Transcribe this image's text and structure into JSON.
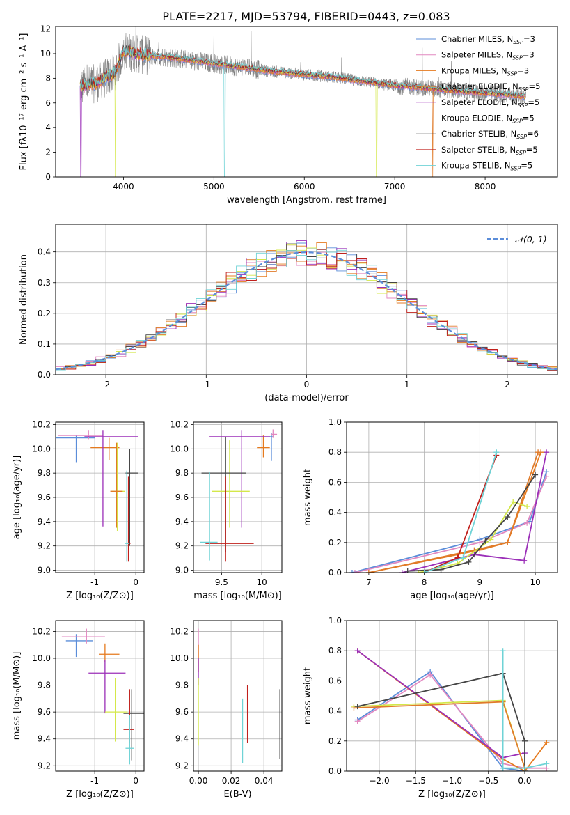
{
  "figure_title": "PLATE=2217, MJD=53794, FIBERID=0443, z=0.083",
  "colors": {
    "Chabrier MILES": "#5b8dd9",
    "Salpeter MILES": "#e288c0",
    "Kroupa MILES": "#e57a1e",
    "Chabrier ELODIE": "#e07b2a",
    "Salpeter ELODIE": "#9b2fb8",
    "Kroupa ELODIE": "#d4e84a",
    "Chabrier STELIB": "#444444",
    "Salpeter STELIB": "#c0201c",
    "Kroupa STELIB": "#6fd3d6",
    "data": "#808080",
    "grid": "#b0b0b0"
  },
  "chart_data": [
    {
      "id": "spectrum",
      "type": "line",
      "xlabel": "wavelength [Angstrom, rest frame]",
      "ylabel": "Flux [fλ10⁻¹⁷ erg cm⁻² s⁻¹ A⁻¹]",
      "xlim": [
        3250,
        8800
      ],
      "ylim": [
        0,
        12.2
      ],
      "xticks": [
        4000,
        5000,
        6000,
        7000,
        8000
      ],
      "yticks": [
        0,
        2,
        4,
        6,
        8,
        10,
        12
      ],
      "grid": false,
      "legend": "top-right",
      "legend_entries": [
        {
          "model": "Chabrier MILES",
          "label": "Chabrier MILES, N",
          "sub": "SSP",
          "suffix": "=3"
        },
        {
          "model": "Salpeter MILES",
          "label": "Salpeter MILES, N",
          "sub": "SSP",
          "suffix": "=3"
        },
        {
          "model": "Kroupa MILES",
          "label": "Kroupa MILES, N",
          "sub": "SSP",
          "suffix": "=3"
        },
        {
          "model": "Chabrier ELODIE",
          "label": "Chabrier ELODIE, N",
          "sub": "SSP",
          "suffix": "=5"
        },
        {
          "model": "Salpeter ELODIE",
          "label": "Salpeter ELODIE, N",
          "sub": "SSP",
          "suffix": "=5"
        },
        {
          "model": "Kroupa ELODIE",
          "label": "Kroupa ELODIE, N",
          "sub": "SSP",
          "suffix": "=5"
        },
        {
          "model": "Chabrier STELIB",
          "label": "Chabrier STELIB, N",
          "sub": "SSP",
          "suffix": "=6"
        },
        {
          "model": "Salpeter STELIB",
          "label": "Salpeter STELIB, N",
          "sub": "SSP",
          "suffix": "=5"
        },
        {
          "model": "Kroupa STELIB",
          "label": "Kroupa STELIB, N",
          "sub": "SSP",
          "suffix": "=5"
        }
      ],
      "continuum": {
        "wavelength": [
          3520,
          3700,
          3900,
          4000,
          4200,
          4500,
          4800,
          5000,
          5300,
          5600,
          6000,
          6300,
          6600,
          6800,
          7000,
          7200,
          7500,
          7800,
          8000,
          8200,
          8450
        ],
        "flux": [
          7.3,
          7.6,
          8.4,
          10.2,
          9.9,
          9.7,
          9.4,
          9.2,
          8.9,
          8.6,
          8.3,
          8.1,
          7.8,
          7.6,
          7.4,
          7.3,
          7.1,
          6.9,
          6.8,
          6.7,
          6.5
        ]
      },
      "model_dropouts": [
        {
          "model": "Kroupa ELODIE",
          "wavelength": 3910
        },
        {
          "model": "Kroupa STELIB",
          "wavelength": 5120
        },
        {
          "model": "Kroupa ELODIE",
          "wavelength": 6800
        },
        {
          "model": "Chabrier ELODIE",
          "wavelength": 7420
        },
        {
          "model": "Salpeter ELODIE",
          "wavelength": 3530
        }
      ]
    },
    {
      "id": "residuals",
      "type": "step",
      "xlabel": "(data-model)/error",
      "ylabel": "Normed distribution",
      "xlim": [
        -2.5,
        2.5
      ],
      "ylim": [
        0,
        0.49
      ],
      "xticks": [
        -2,
        -1,
        0,
        1,
        2
      ],
      "yticks": [
        0.0,
        0.1,
        0.2,
        0.3,
        0.4
      ],
      "grid": true,
      "legend": "top-right",
      "legend_label": "𝒩(0, 1)",
      "bin_width": 0.1
    },
    {
      "id": "age-vs-Z",
      "type": "errorbar",
      "xlabel": "Z [log₁₀(Z/Z⊙)]",
      "ylabel": "age  [log₁₀(age/yr)]",
      "xlim": [
        -1.95,
        0.2
      ],
      "ylim": [
        8.98,
        10.22
      ],
      "xticks": [
        -1,
        0
      ],
      "yticks": [
        9.0,
        9.2,
        9.4,
        9.6,
        9.8,
        10.0,
        10.2
      ],
      "grid": true,
      "points": [
        {
          "model": "Chabrier MILES",
          "x": -1.45,
          "xerr": [
            0.5,
            0.45
          ],
          "y": 10.09,
          "yerr": [
            0.2,
            0.02
          ]
        },
        {
          "model": "Salpeter MILES",
          "x": -1.15,
          "xerr": [
            0.75,
            0.35
          ],
          "y": 10.11,
          "yerr": [
            0.03,
            0.04
          ]
        },
        {
          "model": "Kroupa MILES",
          "x": -0.65,
          "xerr": [
            0.45,
            0.25
          ],
          "y": 10.01,
          "yerr": [
            0.1,
            0.08
          ]
        },
        {
          "model": "Salpeter ELODIE",
          "x": -0.8,
          "xerr": [
            0.45,
            0.85
          ],
          "y": 10.1,
          "yerr": [
            0.74,
            0.05
          ]
        },
        {
          "model": "Kroupa ELODIE",
          "x": -0.45,
          "xerr": [
            0.15,
            0.18
          ],
          "y": 9.65,
          "yerr": [
            0.33,
            0.4
          ]
        },
        {
          "model": "Chabrier ELODIE",
          "x": -0.47,
          "xerr": [
            0.15,
            0.15
          ],
          "y": 9.65,
          "yerr": [
            0.3,
            0.4
          ]
        },
        {
          "model": "Chabrier STELIB",
          "x": -0.15,
          "xerr": [
            0.1,
            0.2
          ],
          "y": 9.8,
          "yerr": [
            0.6,
            0.2
          ]
        },
        {
          "model": "Salpeter STELIB",
          "x": -0.18,
          "xerr": [
            0.05,
            0.05
          ],
          "y": 9.22,
          "yerr": [
            0.15,
            0.55
          ]
        },
        {
          "model": "Kroupa STELIB",
          "x": -0.22,
          "xerr": [
            0.05,
            0.05
          ],
          "y": 9.22,
          "yerr": [
            0.15,
            0.6
          ]
        }
      ]
    },
    {
      "id": "age-vs-mass",
      "type": "errorbar",
      "xlabel": "mass [log₁₀(M/M⊙)]",
      "ylabel": "",
      "xlim": [
        9.15,
        10.25
      ],
      "ylim": [
        8.98,
        10.22
      ],
      "xticks": [
        9.5,
        10.0
      ],
      "yticks": [
        9.0,
        9.2,
        9.4,
        9.6,
        9.8,
        10.0,
        10.2
      ],
      "grid": true,
      "points": [
        {
          "model": "Chabrier MILES",
          "x": 10.12,
          "xerr": [
            0.03,
            0.03
          ],
          "y": 10.1,
          "yerr": [
            0.2,
            0.03
          ]
        },
        {
          "model": "Salpeter MILES",
          "x": 10.14,
          "xerr": [
            0.02,
            0.05
          ],
          "y": 10.12,
          "yerr": [
            0.03,
            0.04
          ]
        },
        {
          "model": "Kroupa MILES",
          "x": 10.02,
          "xerr": [
            0.08,
            0.08
          ],
          "y": 10.01,
          "yerr": [
            0.08,
            0.1
          ]
        },
        {
          "model": "Salpeter ELODIE",
          "x": 9.75,
          "xerr": [
            0.4,
            0.35
          ],
          "y": 10.1,
          "yerr": [
            0.75,
            0.05
          ]
        },
        {
          "model": "Kroupa ELODIE",
          "x": 9.6,
          "xerr": [
            0.22,
            0.25
          ],
          "y": 9.65,
          "yerr": [
            0.3,
            0.42
          ]
        },
        {
          "model": "Chabrier STELIB",
          "x": 9.55,
          "xerr": [
            0.3,
            0.25
          ],
          "y": 9.8,
          "yerr": [
            0.65,
            0.3
          ]
        },
        {
          "model": "Salpeter STELIB",
          "x": 9.55,
          "xerr": [
            0.25,
            0.35
          ],
          "y": 9.22,
          "yerr": [
            0.15,
            0.55
          ]
        },
        {
          "model": "Kroupa STELIB",
          "x": 9.35,
          "xerr": [
            0.12,
            0.1
          ],
          "y": 9.23,
          "yerr": [
            0.15,
            0.58
          ]
        }
      ]
    },
    {
      "id": "massweight-vs-age",
      "type": "line",
      "xlabel": "age  [log₁₀(age/yr)]",
      "ylabel": "mass weight",
      "xlim": [
        6.6,
        10.4
      ],
      "ylim": [
        0,
        1.0
      ],
      "xticks": [
        7,
        8,
        9,
        10
      ],
      "yticks": [
        0.0,
        0.2,
        0.4,
        0.6,
        0.8,
        1.0
      ],
      "grid": true,
      "series": [
        {
          "model": "Chabrier MILES",
          "x": [
            6.7,
            9.0,
            9.9,
            10.2
          ],
          "y": [
            0.0,
            0.22,
            0.34,
            0.67
          ]
        },
        {
          "model": "Salpeter MILES",
          "x": [
            6.75,
            9.0,
            9.85,
            10.2
          ],
          "y": [
            0.0,
            0.2,
            0.33,
            0.64
          ]
        },
        {
          "model": "Kroupa MILES",
          "x": [
            7.0,
            9.0,
            9.5,
            10.1
          ],
          "y": [
            0.0,
            0.15,
            0.2,
            0.8
          ]
        },
        {
          "model": "Chabrier ELODIE",
          "x": [
            7.0,
            8.9,
            9.5,
            10.05
          ],
          "y": [
            0.0,
            0.15,
            0.2,
            0.8
          ]
        },
        {
          "model": "Salpeter ELODIE",
          "x": [
            7.6,
            8.9,
            9.8,
            10.2
          ],
          "y": [
            0.0,
            0.12,
            0.08,
            0.8
          ]
        },
        {
          "model": "Kroupa ELODIE",
          "x": [
            7.9,
            8.6,
            9.2,
            9.6,
            9.85
          ],
          "y": [
            0.0,
            0.06,
            0.22,
            0.47,
            0.44
          ]
        },
        {
          "model": "Chabrier STELIB",
          "x": [
            7.7,
            8.3,
            8.8,
            9.1,
            9.5,
            10.0
          ],
          "y": [
            0.01,
            0.02,
            0.07,
            0.21,
            0.37,
            0.65
          ]
        },
        {
          "model": "Salpeter STELIB",
          "x": [
            8.0,
            8.6,
            9.3
          ],
          "y": [
            0.0,
            0.1,
            0.78
          ]
        },
        {
          "model": "Kroupa STELIB",
          "x": [
            8.0,
            8.7,
            9.3
          ],
          "y": [
            0.0,
            0.1,
            0.8
          ]
        }
      ]
    },
    {
      "id": "mass-vs-Z",
      "type": "errorbar",
      "xlabel": "Z [log₁₀(Z/Z⊙)]",
      "ylabel": "mass [log₁₀(M/M⊙)]",
      "xlim": [
        -1.95,
        0.2
      ],
      "ylim": [
        9.16,
        10.28
      ],
      "xticks": [
        -1,
        0
      ],
      "yticks": [
        9.2,
        9.4,
        9.6,
        9.8,
        10.0,
        10.2
      ],
      "grid": true,
      "points": [
        {
          "model": "Chabrier MILES",
          "x": -1.45,
          "xerr": [
            0.25,
            0.4
          ],
          "y": 10.13,
          "yerr": [
            0.12,
            0.05
          ]
        },
        {
          "model": "Salpeter MILES",
          "x": -1.2,
          "xerr": [
            0.6,
            0.45
          ],
          "y": 10.16,
          "yerr": [
            0.05,
            0.06
          ]
        },
        {
          "model": "Kroupa MILES",
          "x": -0.75,
          "xerr": [
            0.15,
            0.35
          ],
          "y": 10.03,
          "yerr": [
            0.06,
            0.08
          ]
        },
        {
          "model": "Salpeter ELODIE",
          "x": -0.75,
          "xerr": [
            0.4,
            0.5
          ],
          "y": 9.89,
          "yerr": [
            0.3,
            0.1
          ]
        },
        {
          "model": "Kroupa ELODIE",
          "x": -0.5,
          "xerr": [
            0.25,
            0.3
          ],
          "y": 9.6,
          "yerr": [
            0.22,
            0.25
          ]
        },
        {
          "model": "Chabrier STELIB",
          "x": -0.1,
          "xerr": [
            0.2,
            0.3
          ],
          "y": 9.59,
          "yerr": [
            0.35,
            0.18
          ]
        },
        {
          "model": "Salpeter STELIB",
          "x": -0.15,
          "xerr": [
            0.15,
            0.1
          ],
          "y": 9.47,
          "yerr": [
            0.1,
            0.3
          ]
        },
        {
          "model": "Kroupa STELIB",
          "x": -0.15,
          "xerr": [
            0.1,
            0.1
          ],
          "y": 9.33,
          "yerr": [
            0.12,
            0.25
          ]
        }
      ]
    },
    {
      "id": "mass-vs-EBV",
      "type": "errorbar",
      "xlabel": "E(B-V)",
      "ylabel": "",
      "xlim": [
        -0.003,
        0.051
      ],
      "ylim": [
        9.16,
        10.28
      ],
      "xticks": [
        0.0,
        0.02,
        0.04
      ],
      "xtick_labels": [
        "0.00",
        "0.02",
        "0.04"
      ],
      "yticks": [
        9.2,
        9.4,
        9.6,
        9.8,
        10.0,
        10.2
      ],
      "grid": true,
      "points": [
        {
          "model": "Salpeter MILES",
          "x": 0.0,
          "y": 10.1,
          "yerr": [
            0.1,
            0.12
          ]
        },
        {
          "model": "Kroupa MILES",
          "x": 0.0,
          "y": 10.0,
          "yerr": [
            0.1,
            0.1
          ]
        },
        {
          "model": "Salpeter ELODIE",
          "x": 0.0,
          "y": 9.9,
          "yerr": [
            0.1,
            0.1
          ]
        },
        {
          "model": "Kroupa ELODIE",
          "x": 0.0,
          "y": 9.6,
          "yerr": [
            0.25,
            0.25
          ]
        },
        {
          "model": "Kroupa STELIB",
          "x": 0.027,
          "y": 9.45,
          "yerr": [
            0.23,
            0.25
          ]
        },
        {
          "model": "Salpeter STELIB",
          "x": 0.03,
          "y": 9.57,
          "yerr": [
            0.2,
            0.23
          ]
        },
        {
          "model": "Chabrier STELIB",
          "x": 0.0498,
          "y": 9.5,
          "yerr": [
            0.25,
            0.27
          ]
        }
      ]
    },
    {
      "id": "massweight-vs-Z",
      "type": "line",
      "xlabel": "Z [log₁₀(Z/Z⊙)]",
      "ylabel": "mass weight",
      "xlim": [
        -2.45,
        0.45
      ],
      "ylim": [
        0,
        1.0
      ],
      "xticks": [
        -2.0,
        -1.5,
        -1.0,
        -0.5,
        0.0
      ],
      "xtick_labels": [
        "−2.0",
        "−1.5",
        "−1.0",
        "−0.5",
        "0.0"
      ],
      "yticks": [
        0.0,
        0.2,
        0.4,
        0.6,
        0.8,
        1.0
      ],
      "grid": true,
      "series": [
        {
          "model": "Chabrier MILES",
          "x": [
            -2.3,
            -1.3,
            -0.3,
            0.0
          ],
          "y": [
            0.34,
            0.66,
            0.02,
            0.0
          ]
        },
        {
          "model": "Salpeter MILES",
          "x": [
            -2.3,
            -1.3,
            -0.3,
            0.0,
            0.3
          ],
          "y": [
            0.33,
            0.64,
            0.05,
            0.02,
            0.02
          ]
        },
        {
          "model": "Kroupa MILES",
          "x": [
            -2.3,
            -0.3,
            0.0,
            0.3
          ],
          "y": [
            0.8,
            0.08,
            0.0,
            0.19
          ]
        },
        {
          "model": "Salpeter ELODIE",
          "x": [
            -2.3,
            -0.3,
            0.0
          ],
          "y": [
            0.8,
            0.09,
            0.12
          ]
        },
        {
          "model": "Kroupa ELODIE",
          "x": [
            -2.35,
            -0.3,
            0.0
          ],
          "y": [
            0.43,
            0.47,
            0.02
          ]
        },
        {
          "model": "Chabrier ELODIE",
          "x": [
            -2.35,
            -0.3,
            0.0
          ],
          "y": [
            0.42,
            0.46,
            0.02
          ]
        },
        {
          "model": "Chabrier STELIB",
          "x": [
            -2.3,
            -0.3,
            0.0,
            0.0
          ],
          "y": [
            0.43,
            0.65,
            0.2,
            0.0
          ]
        },
        {
          "model": "Kroupa STELIB",
          "x": [
            -0.3,
            -0.3,
            0.0,
            0.3
          ],
          "y": [
            0.8,
            0.02,
            0.02,
            0.05
          ]
        }
      ]
    }
  ]
}
